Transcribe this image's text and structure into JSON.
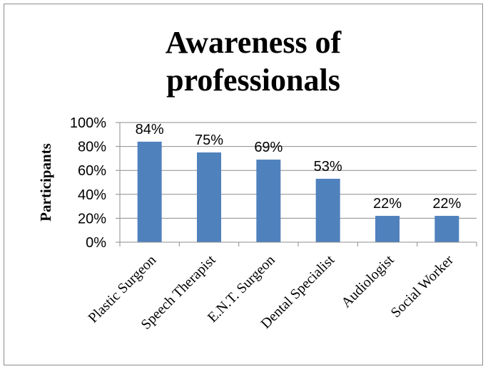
{
  "chart_data": {
    "type": "bar",
    "title_lines": [
      "Awareness of",
      "professionals"
    ],
    "xlabel": "",
    "ylabel": "Participants",
    "categories": [
      "Plastic Surgeon",
      "Speech Therapist",
      "E.N.T. Surgeon",
      "Dental Specialist",
      "Audiologist",
      "Social Worker"
    ],
    "values": [
      84,
      75,
      69,
      53,
      22,
      22
    ],
    "data_labels": [
      "84%",
      "75%",
      "69%",
      "53%",
      "22%",
      "22%"
    ],
    "yticks": [
      "0%",
      "20%",
      "40%",
      "60%",
      "80%",
      "100%"
    ],
    "ylim": [
      0,
      100
    ],
    "grid": true,
    "legend": "none",
    "bar_color": "#4f81bd",
    "grid_color": "#8c8c8c"
  }
}
